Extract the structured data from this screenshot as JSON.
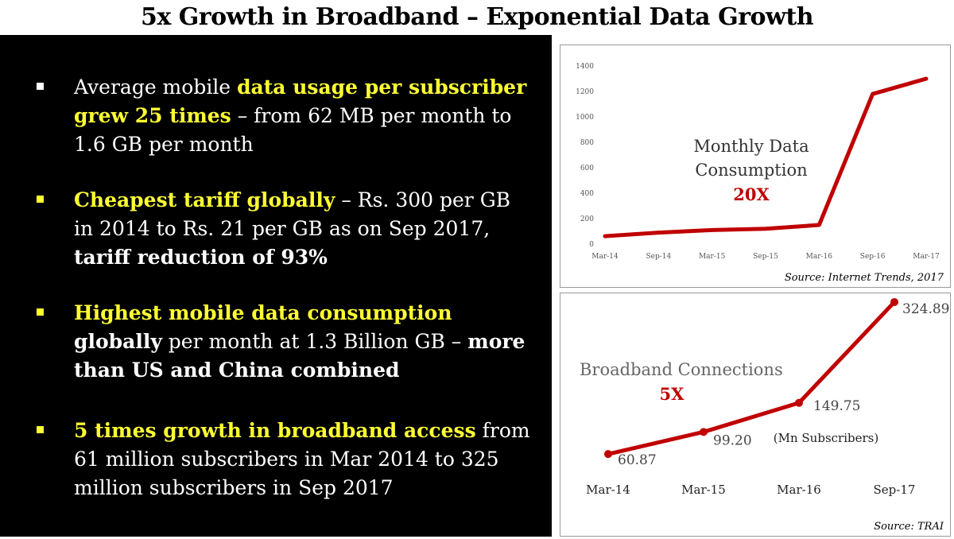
{
  "title": "5x Growth in Broadband – Exponential Data Growth",
  "bullets": [
    {
      "parts": [
        {
          "t": "Average mobile ",
          "s": ""
        },
        {
          "t": "data usage per subscriber grew 25 times",
          "s": "y"
        },
        {
          "t": " – from 62 MB per month to 1.6 GB per month",
          "s": ""
        }
      ]
    },
    {
      "parts": [
        {
          "t": "Cheapest tariff globally",
          "s": "y"
        },
        {
          "t": " – Rs. 300 per GB in 2014 to Rs. 21 per GB as on Sep 2017, ",
          "s": ""
        },
        {
          "t": "tariff reduction of 93%",
          "s": "w"
        }
      ]
    },
    {
      "parts": [
        {
          "t": "Highest mobile data consumption ",
          "s": "y"
        },
        {
          "t": "globally",
          "s": "w"
        },
        {
          "t": " per month at 1.3 Billion GB – ",
          "s": ""
        },
        {
          "t": "more than US and China combined",
          "s": "w"
        }
      ]
    },
    {
      "parts": [
        {
          "t": "5 times growth in broadband access",
          "s": "y"
        },
        {
          "t": " from 61 million subscribers in Mar 2014 to 325 million subscribers in Sep 2017",
          "s": ""
        }
      ]
    }
  ],
  "chart_data": [
    {
      "type": "line",
      "x": [
        "Mar-14",
        "Sep-14",
        "Mar-15",
        "Sep-15",
        "Mar-16",
        "Sep-16",
        "Mar-17"
      ],
      "series": [
        {
          "values": [
            62,
            90,
            110,
            120,
            150,
            1180,
            1300
          ]
        }
      ],
      "yticks": [
        0,
        200,
        400,
        600,
        800,
        1000,
        1200,
        1400
      ],
      "ylim": [
        0,
        1400
      ],
      "annotation": "Monthly Data Consumption",
      "multiplier": "20X",
      "source": "Source: Internet Trends, 2017",
      "grid": false,
      "color": "#c00000"
    },
    {
      "type": "line",
      "x": [
        "Mar-14",
        "Mar-15",
        "Mar-16",
        "Sep-17"
      ],
      "series": [
        {
          "values": [
            60.87,
            99.2,
            149.75,
            324.89
          ]
        }
      ],
      "data_labels": [
        "60.87",
        "99.20",
        "149.75",
        "324.89"
      ],
      "annotation": "Broadband Connections",
      "multiplier": "5X",
      "unit_note": "(Mn Subscribers)",
      "source": "Source: TRAI",
      "grid": false,
      "color": "#c00000"
    }
  ]
}
